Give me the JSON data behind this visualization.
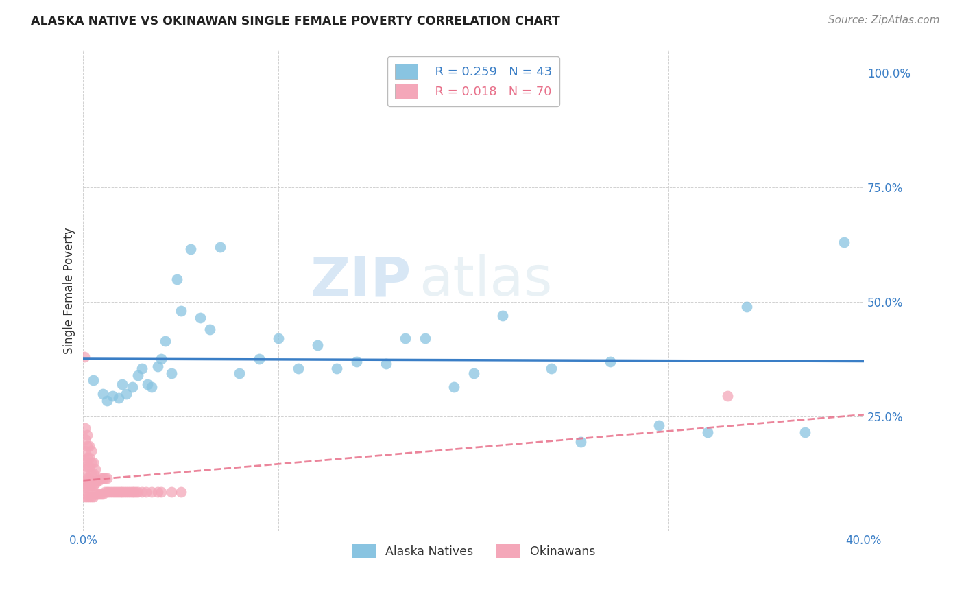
{
  "title": "ALASKA NATIVE VS OKINAWAN SINGLE FEMALE POVERTY CORRELATION CHART",
  "source": "Source: ZipAtlas.com",
  "ylabel_label": "Single Female Poverty",
  "xlim": [
    0.0,
    0.4
  ],
  "ylim": [
    0.0,
    1.05
  ],
  "xticks": [
    0.0,
    0.1,
    0.2,
    0.3,
    0.4
  ],
  "xticklabels": [
    "0.0%",
    "",
    "",
    "",
    "40.0%"
  ],
  "yticks": [
    0.25,
    0.5,
    0.75,
    1.0
  ],
  "yticklabels": [
    "25.0%",
    "50.0%",
    "75.0%",
    "100.0%"
  ],
  "alaska_color": "#89c4e1",
  "okinawan_color": "#f4a7b9",
  "alaska_line_color": "#3a7ec6",
  "okinawan_line_color": "#e8708a",
  "legend_alaska_r": "R = 0.259",
  "legend_alaska_n": "N = 43",
  "legend_okinawan_r": "R = 0.018",
  "legend_okinawan_n": "N = 70",
  "watermark_zip": "ZIP",
  "watermark_atlas": "atlas",
  "alaska_x": [
    0.005,
    0.01,
    0.012,
    0.015,
    0.018,
    0.02,
    0.022,
    0.025,
    0.028,
    0.03,
    0.033,
    0.035,
    0.038,
    0.04,
    0.042,
    0.045,
    0.048,
    0.05,
    0.055,
    0.06,
    0.065,
    0.07,
    0.08,
    0.09,
    0.1,
    0.11,
    0.12,
    0.13,
    0.14,
    0.155,
    0.165,
    0.175,
    0.19,
    0.2,
    0.215,
    0.24,
    0.255,
    0.27,
    0.295,
    0.32,
    0.34,
    0.37,
    0.39
  ],
  "alaska_y": [
    0.33,
    0.3,
    0.285,
    0.295,
    0.29,
    0.32,
    0.3,
    0.315,
    0.34,
    0.355,
    0.32,
    0.315,
    0.36,
    0.375,
    0.415,
    0.345,
    0.55,
    0.48,
    0.615,
    0.465,
    0.44,
    0.62,
    0.345,
    0.375,
    0.42,
    0.355,
    0.405,
    0.355,
    0.37,
    0.365,
    0.42,
    0.42,
    0.315,
    0.345,
    0.47,
    0.355,
    0.195,
    0.37,
    0.23,
    0.215,
    0.49,
    0.215,
    0.63
  ],
  "okinawan_x": [
    0.0005,
    0.001,
    0.001,
    0.001,
    0.001,
    0.001,
    0.001,
    0.001,
    0.001,
    0.002,
    0.002,
    0.002,
    0.002,
    0.002,
    0.002,
    0.002,
    0.003,
    0.003,
    0.003,
    0.003,
    0.003,
    0.003,
    0.004,
    0.004,
    0.004,
    0.004,
    0.004,
    0.005,
    0.005,
    0.005,
    0.005,
    0.006,
    0.006,
    0.006,
    0.007,
    0.007,
    0.008,
    0.008,
    0.009,
    0.009,
    0.01,
    0.01,
    0.011,
    0.011,
    0.012,
    0.012,
    0.013,
    0.014,
    0.015,
    0.016,
    0.017,
    0.018,
    0.019,
    0.02,
    0.021,
    0.022,
    0.023,
    0.024,
    0.025,
    0.026,
    0.027,
    0.028,
    0.03,
    0.032,
    0.035,
    0.038,
    0.04,
    0.045,
    0.05,
    0.33
  ],
  "okinawan_y": [
    0.38,
    0.075,
    0.095,
    0.11,
    0.135,
    0.155,
    0.175,
    0.2,
    0.225,
    0.075,
    0.095,
    0.115,
    0.14,
    0.16,
    0.185,
    0.21,
    0.075,
    0.095,
    0.115,
    0.14,
    0.16,
    0.185,
    0.075,
    0.1,
    0.125,
    0.15,
    0.175,
    0.075,
    0.1,
    0.125,
    0.15,
    0.08,
    0.105,
    0.135,
    0.08,
    0.11,
    0.08,
    0.11,
    0.08,
    0.115,
    0.08,
    0.115,
    0.085,
    0.115,
    0.085,
    0.115,
    0.085,
    0.085,
    0.085,
    0.085,
    0.085,
    0.085,
    0.085,
    0.085,
    0.085,
    0.085,
    0.085,
    0.085,
    0.085,
    0.085,
    0.085,
    0.085,
    0.085,
    0.085,
    0.085,
    0.085,
    0.085,
    0.085,
    0.085,
    0.295
  ]
}
